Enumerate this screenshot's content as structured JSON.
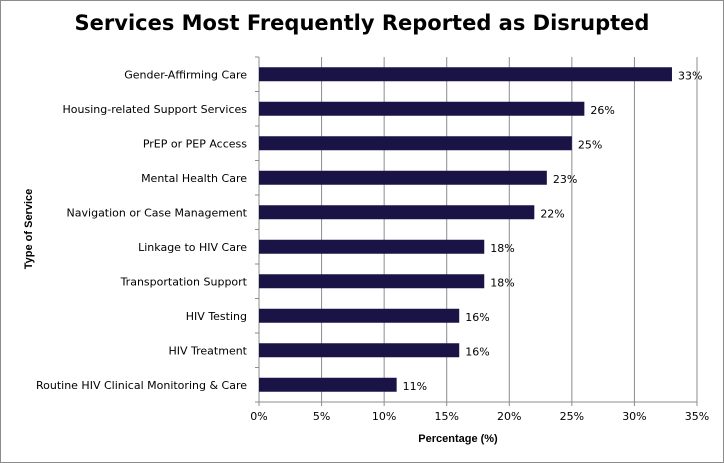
{
  "chart_data": {
    "type": "bar",
    "orientation": "horizontal",
    "title": "Services Most Frequently Reported as Disrupted",
    "xlabel": "Percentage (%)",
    "ylabel": "Type of Service",
    "categories": [
      "Gender-Affirming Care",
      "Housing-related Support Services",
      "PrEP or PEP Access",
      "Mental Health Care",
      "Navigation or Case Management",
      "Linkage to HIV Care",
      "Transportation Support",
      "HIV Testing",
      "HIV Treatment",
      "Routine HIV Clinical Monitoring & Care"
    ],
    "values": [
      33,
      26,
      25,
      23,
      22,
      18,
      18,
      16,
      16,
      11
    ],
    "value_labels": [
      "33%",
      "26%",
      "25%",
      "23%",
      "22%",
      "18%",
      "18%",
      "16%",
      "16%",
      "11%"
    ],
    "xlim": [
      0,
      35
    ],
    "xticks": [
      0,
      5,
      10,
      15,
      20,
      25,
      30,
      35
    ],
    "xtick_labels": [
      "0%",
      "5%",
      "10%",
      "15%",
      "20%",
      "25%",
      "30%",
      "35%"
    ],
    "grid": true,
    "bar_color": "#1a1446"
  }
}
